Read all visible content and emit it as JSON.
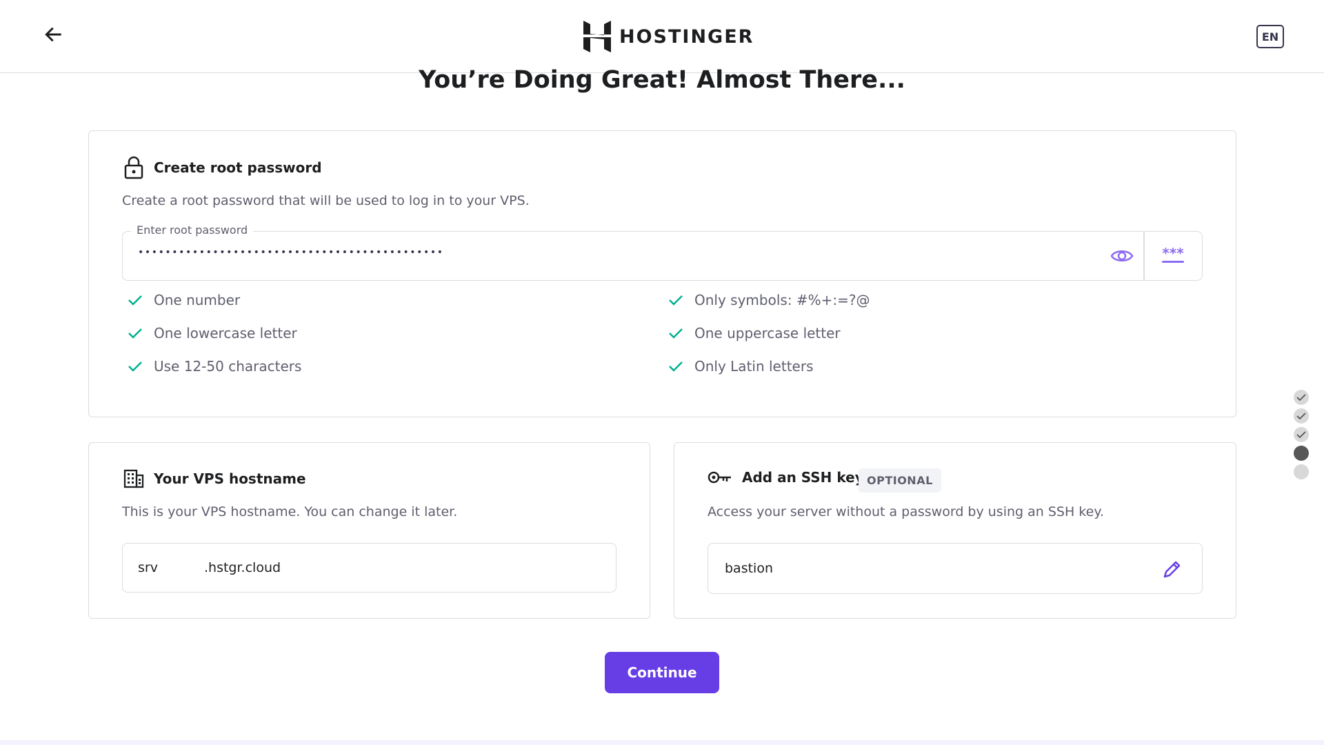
{
  "header": {
    "back_icon": "arrow-left-icon",
    "brand": "HOSTINGER",
    "language": "EN"
  },
  "title": "You’re Doing Great! Almost There...",
  "password_card": {
    "title": "Create root password",
    "description": "Create a root password that will be used to log in to your VPS.",
    "field_label": "Enter root password",
    "value": "•••••••••••••••••••••••••••••••••••••••••••••",
    "reveal_icon": "eye-icon",
    "generate_icon": "password-generate-icon",
    "requirements": [
      {
        "text": "One number",
        "met": true
      },
      {
        "text": "Only symbols: #%+:=?@",
        "met": true
      },
      {
        "text": "One lowercase letter",
        "met": true
      },
      {
        "text": "One uppercase letter",
        "met": true
      },
      {
        "text": "Use 12-50 characters",
        "met": true
      },
      {
        "text": "Only Latin letters",
        "met": true
      }
    ],
    "check_color": "#00b090"
  },
  "hostname_card": {
    "title": "Your VPS hostname",
    "description": "This is your VPS hostname. You can change it later.",
    "prefix": "srv",
    "suffix": ".hstgr.cloud"
  },
  "ssh_card": {
    "title": "Add an SSH key",
    "badge": "OPTIONAL",
    "description": "Access your server without a password by using an SSH key.",
    "value": "bastion"
  },
  "continue_label": "Continue",
  "accent": "#673de6",
  "steps": [
    {
      "state": "done"
    },
    {
      "state": "done"
    },
    {
      "state": "done"
    },
    {
      "state": "current"
    },
    {
      "state": "pending"
    }
  ]
}
